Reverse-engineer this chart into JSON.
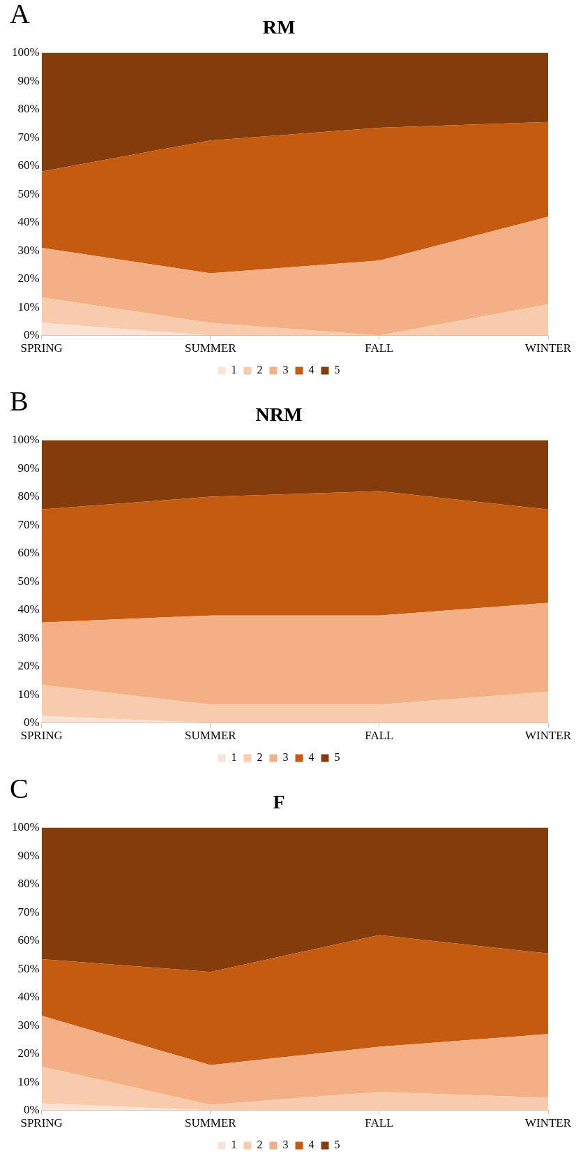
{
  "chart_data": [
    {
      "type": "area",
      "title": "RM",
      "annotations": [
        "A"
      ],
      "stacked": true,
      "categories": [
        "SPRING",
        "SUMMER",
        "FALL",
        "WINTER"
      ],
      "ylim": [
        0,
        100
      ],
      "yticks": [
        {
          "value": 0,
          "label": "0%"
        },
        {
          "value": 10,
          "label": "10%"
        },
        {
          "value": 20,
          "label": "20%"
        },
        {
          "value": 30,
          "label": "30%"
        },
        {
          "value": 40,
          "label": "40%"
        },
        {
          "value": 50,
          "label": "50%"
        },
        {
          "value": 60,
          "label": "60%"
        },
        {
          "value": 70,
          "label": "70%"
        },
        {
          "value": 80,
          "label": "80%"
        },
        {
          "value": 90,
          "label": "90%"
        },
        {
          "value": 100,
          "label": "100%"
        }
      ],
      "grid": false,
      "legend": "bottom",
      "series": [
        {
          "name": "1",
          "color": "#fae3d5",
          "values": [
            4.5,
            0,
            0,
            0
          ]
        },
        {
          "name": "2",
          "color": "#f7cbab",
          "values": [
            9,
            4.5,
            0,
            11
          ]
        },
        {
          "name": "3",
          "color": "#f3b085",
          "values": [
            17.5,
            17.5,
            26.5,
            31
          ]
        },
        {
          "name": "4",
          "color": "#c55a11",
          "values": [
            27,
            47,
            47,
            33.5
          ]
        },
        {
          "name": "5",
          "color": "#843c0c",
          "values": [
            42,
            31,
            26.5,
            24.5
          ]
        }
      ]
    },
    {
      "type": "area",
      "title": "NRM",
      "annotations": [
        "B"
      ],
      "stacked": true,
      "categories": [
        "SPRING",
        "SUMMER",
        "FALL",
        "WINTER"
      ],
      "ylim": [
        0,
        100
      ],
      "yticks": [
        {
          "value": 0,
          "label": "0%"
        },
        {
          "value": 10,
          "label": "10%"
        },
        {
          "value": 20,
          "label": "20%"
        },
        {
          "value": 30,
          "label": "30%"
        },
        {
          "value": 40,
          "label": "40%"
        },
        {
          "value": 50,
          "label": "50%"
        },
        {
          "value": 60,
          "label": "60%"
        },
        {
          "value": 70,
          "label": "70%"
        },
        {
          "value": 80,
          "label": "80%"
        },
        {
          "value": 90,
          "label": "90%"
        },
        {
          "value": 100,
          "label": "100%"
        }
      ],
      "grid": false,
      "legend": "bottom",
      "series": [
        {
          "name": "1",
          "color": "#fae3d5",
          "values": [
            2.5,
            0,
            0,
            0
          ]
        },
        {
          "name": "2",
          "color": "#f7cbab",
          "values": [
            11,
            6.5,
            6.5,
            11
          ]
        },
        {
          "name": "3",
          "color": "#f3b085",
          "values": [
            22,
            31.5,
            31.5,
            31.5
          ]
        },
        {
          "name": "4",
          "color": "#c55a11",
          "values": [
            40,
            42,
            44,
            33
          ]
        },
        {
          "name": "5",
          "color": "#843c0c",
          "values": [
            24.5,
            20,
            18,
            24.5
          ]
        }
      ]
    },
    {
      "type": "area",
      "title": "F",
      "annotations": [
        "C"
      ],
      "stacked": true,
      "categories": [
        "SPRING",
        "SUMMER",
        "FALL",
        "WINTER"
      ],
      "ylim": [
        0,
        100
      ],
      "yticks": [
        {
          "value": 0,
          "label": "0%"
        },
        {
          "value": 10,
          "label": "10%"
        },
        {
          "value": 20,
          "label": "20%"
        },
        {
          "value": 30,
          "label": "30%"
        },
        {
          "value": 40,
          "label": "40%"
        },
        {
          "value": 50,
          "label": "50%"
        },
        {
          "value": 60,
          "label": "60%"
        },
        {
          "value": 70,
          "label": "70%"
        },
        {
          "value": 80,
          "label": "80%"
        },
        {
          "value": 90,
          "label": "90%"
        },
        {
          "value": 100,
          "label": "100%"
        }
      ],
      "grid": false,
      "legend": "bottom",
      "series": [
        {
          "name": "1",
          "color": "#fae3d5",
          "values": [
            2.5,
            0,
            0,
            0
          ]
        },
        {
          "name": "2",
          "color": "#f7cbab",
          "values": [
            13,
            2,
            6.5,
            4.5
          ]
        },
        {
          "name": "3",
          "color": "#f3b085",
          "values": [
            18,
            14,
            16,
            22.5
          ]
        },
        {
          "name": "4",
          "color": "#c55a11",
          "values": [
            20,
            33,
            39.5,
            28.5
          ]
        },
        {
          "name": "5",
          "color": "#843c0c",
          "values": [
            46.5,
            51,
            38,
            44.5
          ]
        }
      ]
    }
  ]
}
